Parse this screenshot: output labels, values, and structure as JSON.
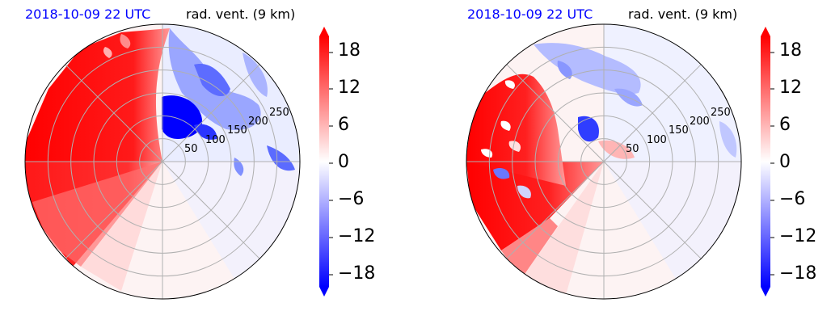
{
  "chart_data": [
    {
      "type": "heatmap",
      "projection": "polar",
      "title_left": "2018-10-09 22 UTC",
      "title_right": "rad. vent. (9 km)",
      "radial_ticks": [
        50,
        100,
        150,
        200,
        250
      ],
      "grid": true,
      "colorbar": {
        "ticks": [
          "18",
          "12",
          "6",
          "0",
          "−6",
          "−12",
          "−18"
        ],
        "tick_values": [
          18,
          12,
          6,
          0,
          -6,
          -12,
          -18
        ],
        "range": [
          -21,
          21
        ],
        "colors": {
          "negative": "#0000ff",
          "zero": "#ffffff",
          "positive": "#ff0000"
        }
      }
    },
    {
      "type": "heatmap",
      "projection": "polar",
      "title_left": "2018-10-09 22 UTC",
      "title_right": "rad. vent. (9 km)",
      "radial_ticks": [
        50,
        100,
        150,
        200,
        250
      ],
      "grid": true,
      "colorbar": {
        "ticks": [
          "18",
          "12",
          "6",
          "0",
          "−6",
          "−12",
          "−18"
        ],
        "tick_values": [
          18,
          12,
          6,
          0,
          -6,
          -12,
          -18
        ],
        "range": [
          -21,
          21
        ],
        "colors": {
          "negative": "#0000ff",
          "zero": "#ffffff",
          "positive": "#ff0000"
        }
      }
    }
  ]
}
